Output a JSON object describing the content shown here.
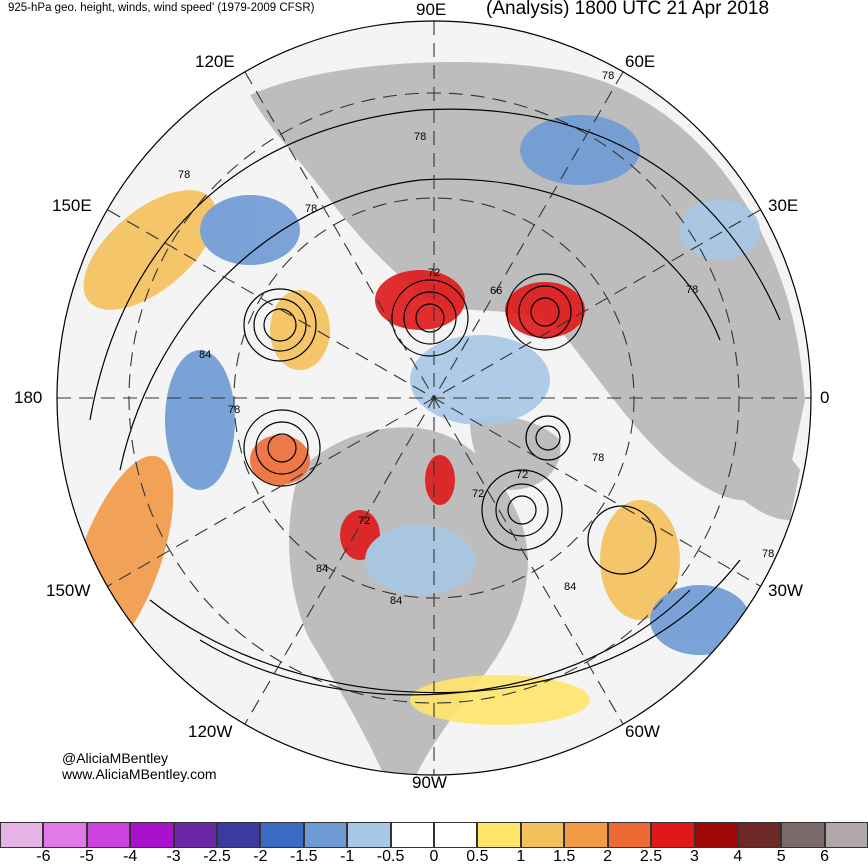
{
  "header": {
    "left_title": "925-hPa geo. height, winds, wind speed' (1979-2009 CFSR)",
    "right_title": "(Analysis) 1800 UTC 21 Apr 2018"
  },
  "map": {
    "projection": "north polar stereographic",
    "longitude_labels": [
      "90E",
      "60E",
      "30E",
      "0",
      "30W",
      "60W",
      "90W",
      "120W",
      "150W",
      "180",
      "150E",
      "120E"
    ],
    "contour_labels": [
      "78",
      "78",
      "78",
      "78",
      "72",
      "66",
      "78",
      "84",
      "78",
      "72",
      "72",
      "78",
      "84",
      "84",
      "78",
      "84",
      "72"
    ],
    "colors": {
      "land": "#bdbdbd",
      "ocean": "#ffffff",
      "contour": "#000000"
    }
  },
  "credits": {
    "handle": "@AliciaMBentley",
    "website": "www.AliciaMBentley.com"
  },
  "colorbar": {
    "colors": [
      "#e6b3e6",
      "#e07ae6",
      "#cc44dd",
      "#aa11cc",
      "#6a28a8",
      "#3a3aa0",
      "#3b6cc4",
      "#6e9ad4",
      "#a7c8e6",
      "#ffffff",
      "#ffffff",
      "#ffe66a",
      "#f4c05a",
      "#f29a45",
      "#ee6a35",
      "#e01818",
      "#a00808",
      "#6e2828",
      "#7a6a6a",
      "#b0a8a8"
    ],
    "tick_labels": [
      "-6",
      "-5",
      "-4",
      "-3",
      "-2.5",
      "-2",
      "-1.5",
      "-1",
      "-0.5",
      "0",
      "0.5",
      "1",
      "1.5",
      "2",
      "2.5",
      "3",
      "4",
      "5",
      "6"
    ]
  }
}
